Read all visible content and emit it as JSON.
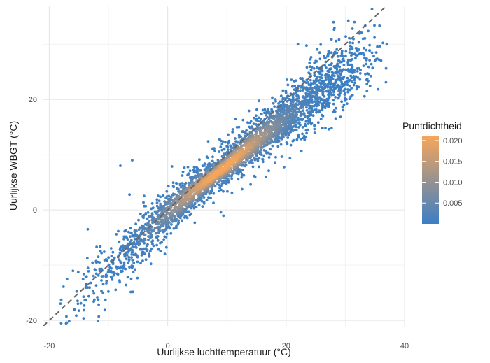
{
  "chart_data": {
    "type": "scatter",
    "xlabel": "Uurlijkse luchttemperatuur (°C)",
    "ylabel": "Uurlijkse WBGT (°C)",
    "xlim": [
      -21,
      40
    ],
    "ylim": [
      -21,
      37
    ],
    "x_ticks": [
      -20,
      0,
      20,
      40
    ],
    "y_ticks": [
      -20,
      0,
      20
    ],
    "grid": true,
    "reference_line": {
      "type": "identity",
      "style": "dashed",
      "color": "#666666"
    },
    "density_ridge": {
      "x": [
        -20,
        -15,
        -10,
        -5,
        0,
        5,
        10,
        15,
        20,
        25,
        30,
        35
      ],
      "y": [
        -20.5,
        -15,
        -10.5,
        -5.5,
        -0.5,
        4,
        8,
        12.5,
        16.5,
        21,
        24.5,
        27
      ]
    },
    "color_scale": {
      "low": "#3b7fc4",
      "high": "#f5a65b"
    },
    "legend": {
      "title": "Puntdichtheid",
      "position": "right",
      "min": 0,
      "max": 0.021,
      "breaks": [
        0.005,
        0.01,
        0.015,
        0.02
      ],
      "labels": [
        "0.005",
        "0.010",
        "0.015",
        "0.020"
      ]
    }
  }
}
